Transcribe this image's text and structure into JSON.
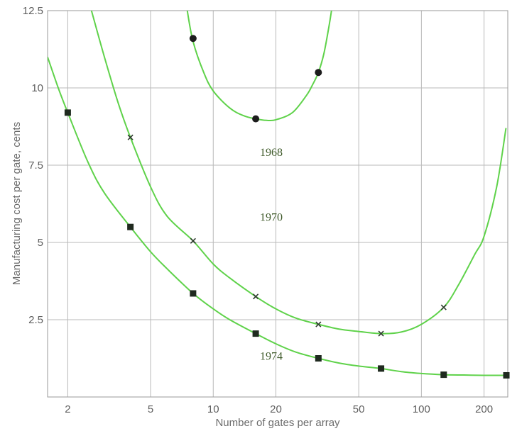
{
  "chart_data": {
    "type": "line",
    "title": "",
    "xlabel": "Number of gates per array",
    "ylabel": "Manufacturing cost per gate, cents",
    "xscale": "log",
    "xlim": [
      1.6,
      260
    ],
    "ylim": [
      0,
      12.5
    ],
    "x_ticks": [
      2,
      5,
      10,
      20,
      50,
      100,
      200
    ],
    "x_tick_labels": [
      "2",
      "5",
      "10",
      "20",
      "50",
      "100",
      "200"
    ],
    "y_ticks": [
      2.5,
      5,
      7.5,
      10,
      12.5
    ],
    "y_tick_labels": [
      "2.5",
      "5",
      "7.5",
      "10",
      "12.5"
    ],
    "grid": true,
    "legend": "none",
    "colors": {
      "curve": "#5fd24a",
      "marker": "#1c1c1c",
      "grid": "#b9b9b9",
      "text": "#5e5e5e"
    },
    "series": [
      {
        "name": "1968",
        "marker": "circle",
        "points": [
          [
            8,
            11.6
          ],
          [
            16,
            9.0
          ],
          [
            32,
            10.5
          ]
        ],
        "curve": [
          [
            7.5,
            12.5
          ],
          [
            8,
            11.5
          ],
          [
            9,
            10.5
          ],
          [
            10,
            9.9
          ],
          [
            12,
            9.35
          ],
          [
            14,
            9.1
          ],
          [
            16,
            9.0
          ],
          [
            18,
            8.95
          ],
          [
            20,
            8.97
          ],
          [
            24,
            9.2
          ],
          [
            28,
            9.75
          ],
          [
            30,
            10.1
          ],
          [
            32,
            10.5
          ],
          [
            34,
            11.1
          ],
          [
            36,
            12.0
          ],
          [
            37,
            12.5
          ]
        ]
      },
      {
        "name": "1970",
        "marker": "x",
        "points": [
          [
            4,
            8.4
          ],
          [
            8,
            5.05
          ],
          [
            16,
            3.25
          ],
          [
            32,
            2.35
          ],
          [
            64,
            2.05
          ],
          [
            128,
            2.9
          ]
        ],
        "curve": [
          [
            2.6,
            12.5
          ],
          [
            3,
            11.0
          ],
          [
            3.5,
            9.5
          ],
          [
            4,
            8.4
          ],
          [
            5,
            6.8
          ],
          [
            6,
            5.85
          ],
          [
            8,
            5.05
          ],
          [
            10,
            4.3
          ],
          [
            12,
            3.85
          ],
          [
            16,
            3.25
          ],
          [
            20,
            2.85
          ],
          [
            25,
            2.55
          ],
          [
            32,
            2.35
          ],
          [
            40,
            2.2
          ],
          [
            50,
            2.12
          ],
          [
            64,
            2.05
          ],
          [
            80,
            2.1
          ],
          [
            100,
            2.35
          ],
          [
            128,
            2.9
          ],
          [
            150,
            3.6
          ],
          [
            180,
            4.6
          ],
          [
            200,
            5.2
          ],
          [
            230,
            6.8
          ],
          [
            255,
            8.7
          ]
        ]
      },
      {
        "name": "1974",
        "marker": "square",
        "points": [
          [
            2,
            9.2
          ],
          [
            4,
            5.5
          ],
          [
            8,
            3.35
          ],
          [
            16,
            2.05
          ],
          [
            32,
            1.25
          ],
          [
            64,
            0.92
          ],
          [
            128,
            0.72
          ],
          [
            256,
            0.7
          ]
        ],
        "curve": [
          [
            1.6,
            11.0
          ],
          [
            1.8,
            10.0
          ],
          [
            2,
            9.2
          ],
          [
            2.5,
            7.6
          ],
          [
            3,
            6.6
          ],
          [
            4,
            5.5
          ],
          [
            5,
            4.7
          ],
          [
            6,
            4.15
          ],
          [
            8,
            3.35
          ],
          [
            10,
            2.85
          ],
          [
            12,
            2.5
          ],
          [
            16,
            2.05
          ],
          [
            20,
            1.72
          ],
          [
            25,
            1.45
          ],
          [
            32,
            1.25
          ],
          [
            40,
            1.1
          ],
          [
            50,
            1.0
          ],
          [
            64,
            0.92
          ],
          [
            80,
            0.82
          ],
          [
            100,
            0.76
          ],
          [
            128,
            0.72
          ],
          [
            160,
            0.71
          ],
          [
            200,
            0.7
          ],
          [
            256,
            0.7
          ]
        ]
      }
    ],
    "annotations": [
      {
        "text": "1968",
        "x": 19,
        "y": 7.8
      },
      {
        "text": "1970",
        "x": 19,
        "y": 5.7
      },
      {
        "text": "1974",
        "x": 19,
        "y": 1.2
      }
    ]
  }
}
